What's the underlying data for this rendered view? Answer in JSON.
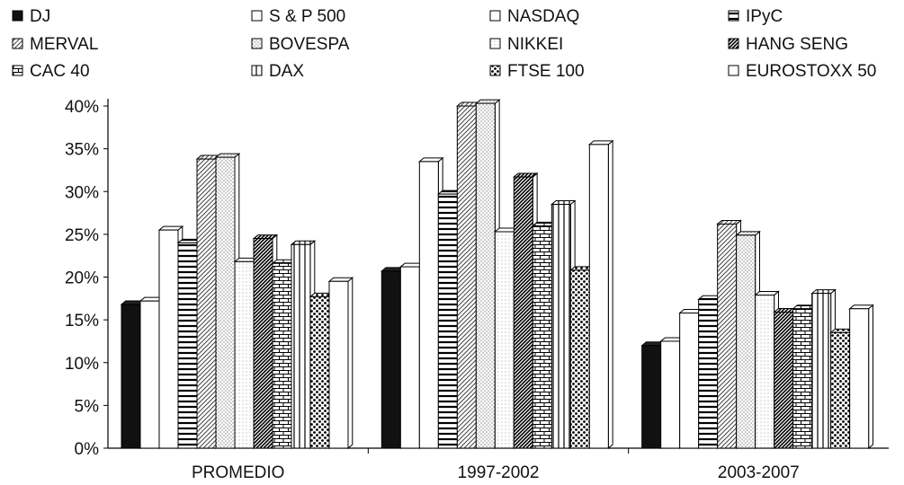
{
  "chart_data": {
    "type": "bar",
    "title": "",
    "xlabel": "",
    "ylabel": "",
    "categories": [
      "PROMEDIO",
      "1997-2002",
      "2003-2007"
    ],
    "ylim": [
      0,
      40
    ],
    "yticks": [
      "0%",
      "5%",
      "10%",
      "15%",
      "20%",
      "25%",
      "30%",
      "35%",
      "40%"
    ],
    "grid": false,
    "legend_position": "top",
    "series": [
      {
        "name": "DJ",
        "values": [
          16.8,
          20.7,
          12.0
        ]
      },
      {
        "name": "S & P 500",
        "values": [
          17.2,
          21.2,
          12.5
        ]
      },
      {
        "name": "NASDAQ",
        "values": [
          25.5,
          33.5,
          15.8
        ]
      },
      {
        "name": "IPyC",
        "values": [
          24.0,
          29.7,
          17.4
        ]
      },
      {
        "name": "MERVAL",
        "values": [
          33.8,
          40.0,
          26.2
        ]
      },
      {
        "name": "BOVESPA",
        "values": [
          34.0,
          40.3,
          24.9
        ]
      },
      {
        "name": "NIKKEI",
        "values": [
          21.8,
          25.3,
          17.9
        ]
      },
      {
        "name": "HANG SENG",
        "values": [
          24.5,
          31.7,
          15.9
        ]
      },
      {
        "name": "CAC 40",
        "values": [
          21.6,
          26.0,
          16.3
        ]
      },
      {
        "name": "DAX",
        "values": [
          23.8,
          28.5,
          18.1
        ]
      },
      {
        "name": "FTSE 100",
        "values": [
          17.7,
          20.8,
          13.5
        ]
      },
      {
        "name": "EUROSTOXX 50",
        "values": [
          19.5,
          35.5,
          16.3
        ]
      }
    ]
  },
  "patterns": [
    "solid",
    "blank",
    "blank",
    "hlines",
    "diag",
    "dots",
    "fine-dots",
    "dense-diag",
    "bricks",
    "vlines",
    "checker",
    "blank"
  ]
}
